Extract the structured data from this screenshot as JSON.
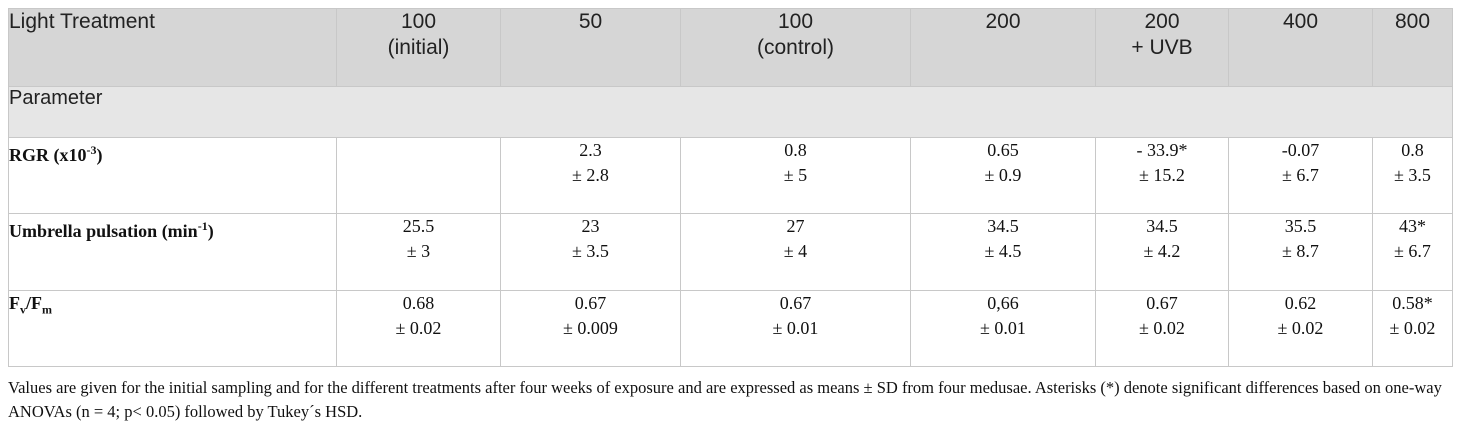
{
  "table": {
    "header": [
      [
        "Light Treatment"
      ],
      [
        "100",
        "(initial)"
      ],
      [
        "50"
      ],
      [
        "100",
        "(control)"
      ],
      [
        "200"
      ],
      [
        "200",
        "+ UVB"
      ],
      [
        "400"
      ],
      [
        "800"
      ]
    ],
    "section": "Parameter",
    "rows": [
      {
        "label": [
          {
            "text": "RGR (x10"
          },
          {
            "sup": "-3"
          },
          {
            "text": ")"
          }
        ],
        "cells": [
          null,
          [
            "2.3",
            "± 2.8"
          ],
          [
            "0.8",
            "± 5"
          ],
          [
            "0.65",
            "± 0.9"
          ],
          [
            "- 33.9*",
            "± 15.2"
          ],
          [
            "-0.07",
            "± 6.7"
          ],
          [
            "0.8",
            "± 3.5"
          ]
        ]
      },
      {
        "label": [
          {
            "text": "Umbrella pulsation (min"
          },
          {
            "sup": "-1"
          },
          {
            "text": ")"
          }
        ],
        "cells": [
          [
            "25.5",
            "± 3"
          ],
          [
            "23",
            "± 3.5"
          ],
          [
            "27",
            "± 4"
          ],
          [
            "34.5",
            "± 4.5"
          ],
          [
            "34.5",
            "± 4.2"
          ],
          [
            "35.5",
            "± 8.7"
          ],
          [
            "43*",
            "± 6.7"
          ]
        ]
      },
      {
        "label": [
          {
            "text": "F"
          },
          {
            "sub": "v"
          },
          {
            "text": "/F"
          },
          {
            "sub": "m"
          }
        ],
        "cells": [
          [
            "0.68",
            "± 0.02"
          ],
          [
            "0.67",
            "± 0.009"
          ],
          [
            "0.67",
            "± 0.01"
          ],
          [
            "0,66",
            "± 0.01"
          ],
          [
            "0.67",
            "± 0.02"
          ],
          [
            "0.62",
            "± 0.02"
          ],
          [
            "0.58*",
            "± 0.02"
          ]
        ]
      }
    ]
  },
  "footnote": "Values are given for the initial sampling and for the different treatments after four weeks of exposure and are expressed as means ± SD from four medusae. Asterisks (*) denote significant differences based on one-way ANOVAs (n = 4; p< 0.05) followed by Tukey´s HSD."
}
